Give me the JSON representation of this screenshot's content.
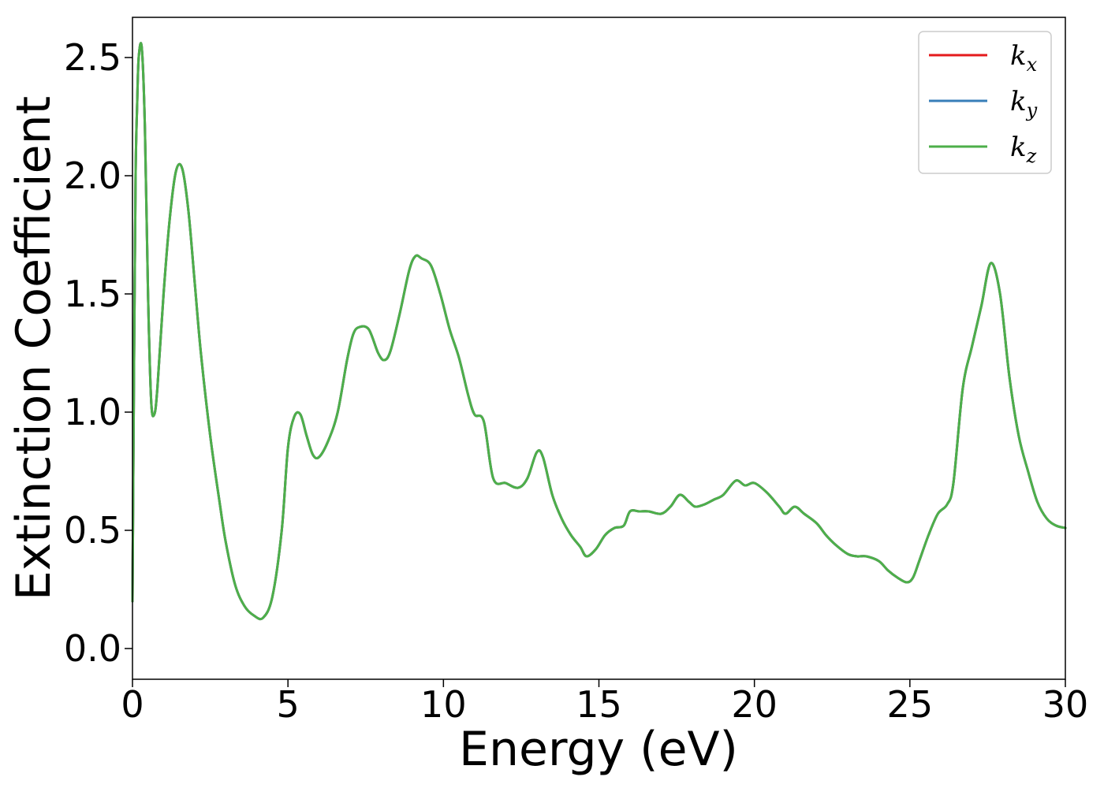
{
  "chart_data": {
    "type": "line",
    "xlabel": "Energy (eV)",
    "ylabel": "Extinction Coefficient",
    "xlim": [
      0,
      30
    ],
    "ylim": [
      -0.13,
      2.67
    ],
    "x_ticks": [
      "0",
      "5",
      "10",
      "15",
      "20",
      "25",
      "30"
    ],
    "y_ticks": [
      "0.0",
      "0.5",
      "1.0",
      "1.5",
      "2.0",
      "2.5"
    ],
    "x_tick_values": [
      0,
      5,
      10,
      15,
      20,
      25,
      30
    ],
    "y_tick_values": [
      0.0,
      0.5,
      1.0,
      1.5,
      2.0,
      2.5
    ],
    "grid": false,
    "legend_position": "top-right",
    "series": [
      {
        "name": "k",
        "subscript": "x",
        "color": "#e41a1c"
      },
      {
        "name": "k",
        "subscript": "y",
        "color": "#377eb8"
      },
      {
        "name": "k",
        "subscript": "z",
        "color": "#4daf4a"
      }
    ],
    "x": [
      0,
      0.05,
      0.1,
      0.15,
      0.2,
      0.3,
      0.4,
      0.5,
      0.6,
      0.7,
      0.8,
      1.0,
      1.2,
      1.4,
      1.6,
      1.8,
      2.0,
      2.2,
      2.5,
      2.8,
      3.0,
      3.3,
      3.6,
      3.9,
      4.2,
      4.5,
      4.8,
      5.0,
      5.2,
      5.4,
      5.6,
      5.8,
      6.0,
      6.3,
      6.6,
      6.9,
      7.1,
      7.3,
      7.6,
      7.9,
      8.1,
      8.3,
      8.6,
      8.9,
      9.1,
      9.3,
      9.6,
      9.9,
      10.2,
      10.5,
      10.8,
      11.0,
      11.3,
      11.6,
      12.0,
      12.4,
      12.7,
      13.0,
      13.2,
      13.5,
      13.8,
      14.1,
      14.4,
      14.6,
      14.9,
      15.2,
      15.5,
      15.8,
      16.0,
      16.3,
      16.6,
      17.0,
      17.3,
      17.6,
      17.9,
      18.1,
      18.4,
      18.7,
      19.0,
      19.4,
      19.7,
      20.0,
      20.4,
      20.8,
      21.0,
      21.3,
      21.6,
      22.0,
      22.3,
      22.6,
      23.0,
      23.3,
      23.6,
      24.0,
      24.3,
      24.6,
      24.9,
      25.1,
      25.3,
      25.6,
      25.9,
      26.2,
      26.4,
      26.7,
      27.0,
      27.3,
      27.6,
      27.9,
      28.2,
      28.5,
      28.8,
      29.1,
      29.4,
      29.7,
      30.0
    ],
    "y": [
      0.2,
      1.2,
      2.0,
      2.3,
      2.5,
      2.54,
      2.2,
      1.5,
      1.05,
      0.99,
      1.1,
      1.5,
      1.82,
      2.02,
      2.03,
      1.85,
      1.55,
      1.25,
      0.9,
      0.62,
      0.45,
      0.27,
      0.18,
      0.14,
      0.13,
      0.22,
      0.5,
      0.85,
      0.98,
      0.99,
      0.9,
      0.82,
      0.81,
      0.88,
      1.0,
      1.22,
      1.33,
      1.36,
      1.35,
      1.25,
      1.22,
      1.26,
      1.42,
      1.6,
      1.66,
      1.65,
      1.62,
      1.5,
      1.35,
      1.23,
      1.07,
      0.99,
      0.96,
      0.72,
      0.7,
      0.68,
      0.72,
      0.83,
      0.81,
      0.65,
      0.55,
      0.48,
      0.43,
      0.39,
      0.42,
      0.48,
      0.51,
      0.52,
      0.58,
      0.58,
      0.58,
      0.57,
      0.6,
      0.65,
      0.62,
      0.6,
      0.61,
      0.63,
      0.65,
      0.71,
      0.69,
      0.7,
      0.66,
      0.6,
      0.57,
      0.6,
      0.57,
      0.53,
      0.48,
      0.44,
      0.4,
      0.39,
      0.39,
      0.37,
      0.33,
      0.3,
      0.28,
      0.3,
      0.37,
      0.48,
      0.57,
      0.61,
      0.7,
      1.1,
      1.28,
      1.45,
      1.63,
      1.5,
      1.15,
      0.9,
      0.75,
      0.62,
      0.55,
      0.52,
      0.51
    ]
  }
}
